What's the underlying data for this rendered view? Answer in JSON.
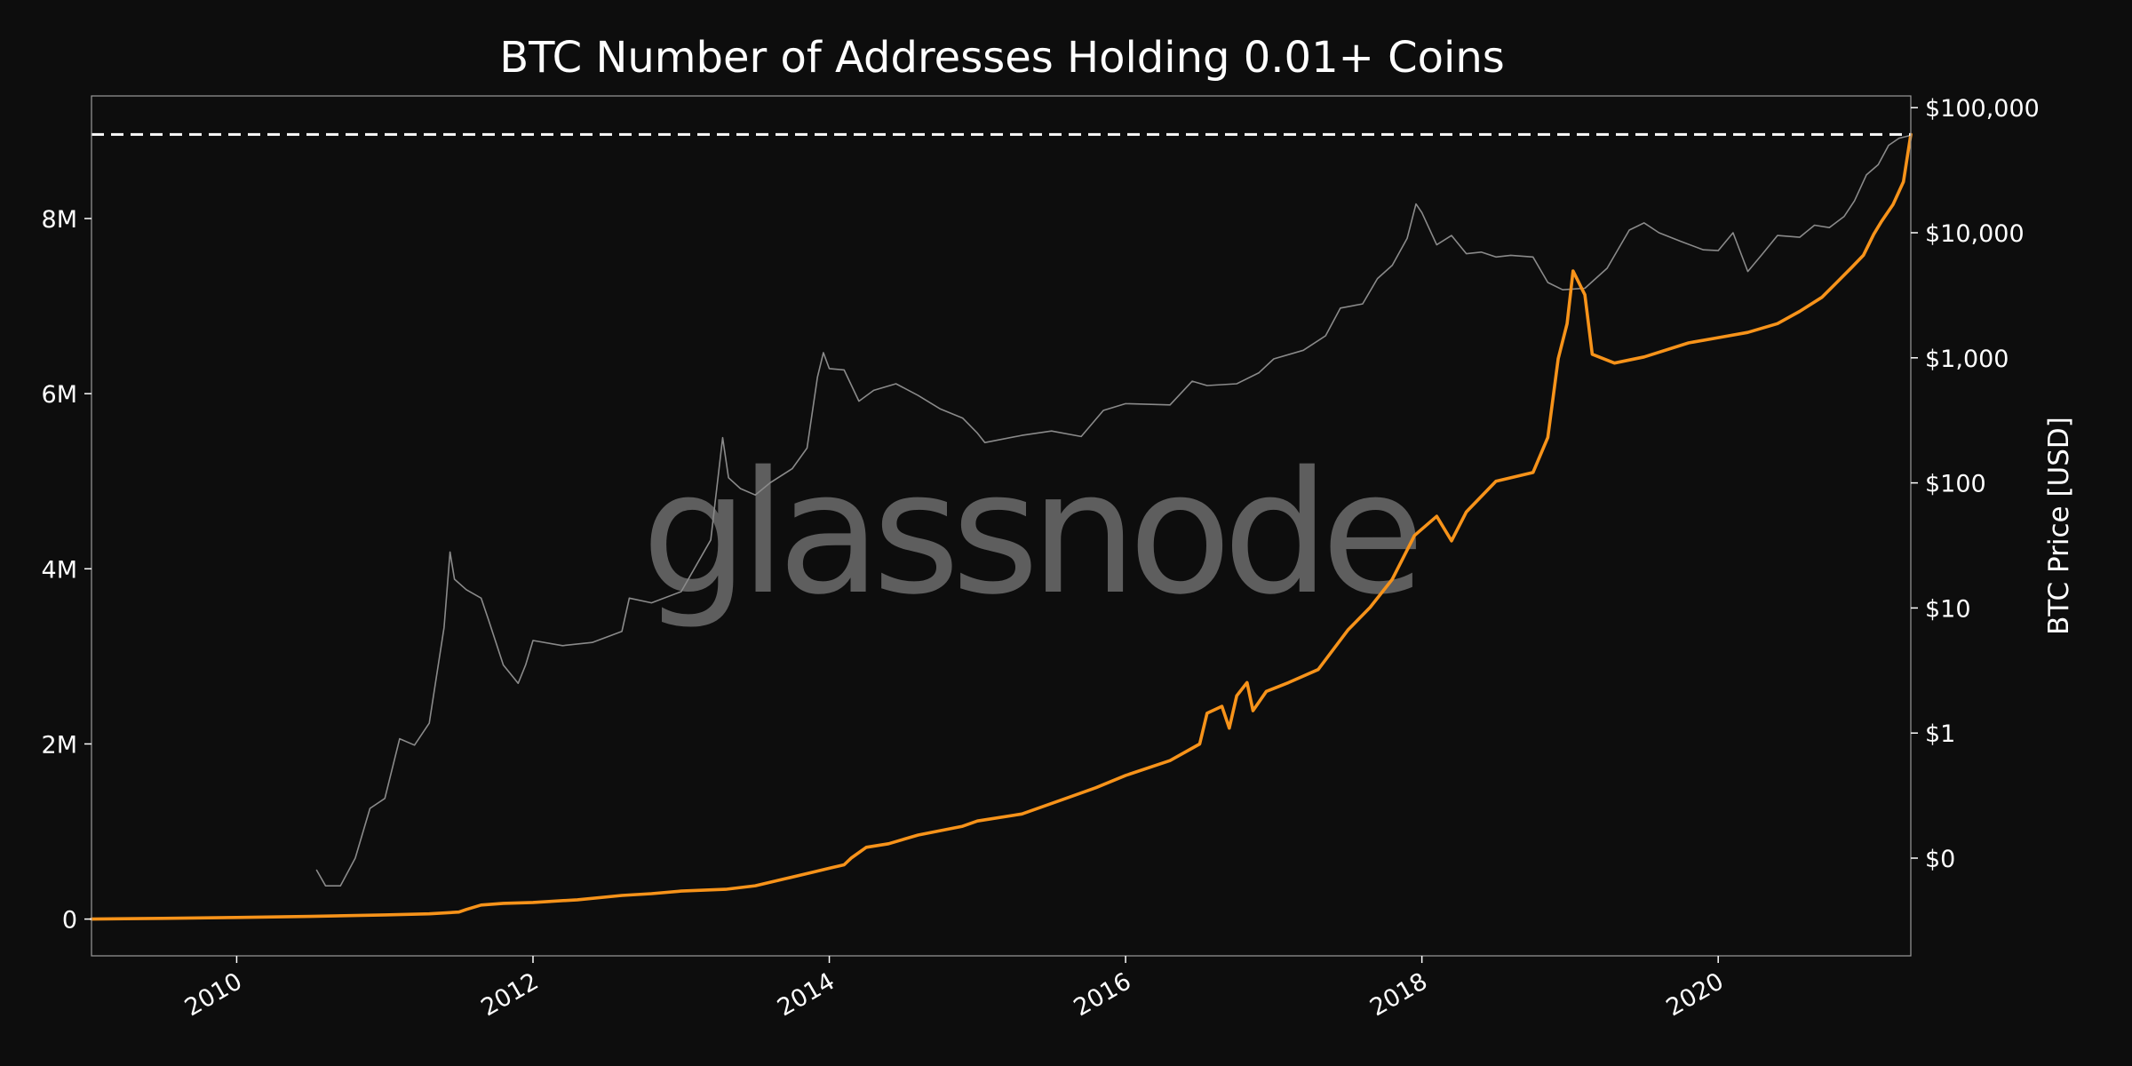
{
  "chart_data": {
    "type": "line",
    "title": "BTC Number of Addresses Holding 0.01+ Coins",
    "watermark": "glassnode",
    "xlabel": "",
    "x_ticks": [
      "2010",
      "2012",
      "2014",
      "2016",
      "2018",
      "2020"
    ],
    "x_range": [
      2009.02,
      2021.3
    ],
    "y_left": {
      "label": "",
      "range": [
        -420000,
        9400000
      ],
      "ticks": [
        0,
        2000000,
        4000000,
        6000000,
        8000000
      ],
      "tick_labels": [
        "0",
        "2M",
        "4M",
        "6M",
        "8M"
      ]
    },
    "y_right": {
      "label": "BTC Price [USD]",
      "scale": "log",
      "ticks": [
        0.1,
        1,
        10,
        100,
        1000,
        10000,
        100000
      ],
      "tick_labels": [
        "$0",
        "$1",
        "$10",
        "$100",
        "$1,000",
        "$10,000",
        "$100,000"
      ]
    },
    "reference_line": {
      "axis": "left",
      "value": 8960000,
      "style": "dashed",
      "color": "#ffffff"
    },
    "grid": false,
    "series": [
      {
        "axis": "left",
        "color": "#f7931a",
        "points": [
          [
            2009.02,
            0
          ],
          [
            2009.5,
            8000
          ],
          [
            2010.0,
            18000
          ],
          [
            2010.5,
            30000
          ],
          [
            2011.0,
            48000
          ],
          [
            2011.3,
            60000
          ],
          [
            2011.5,
            80000
          ],
          [
            2011.55,
            110000
          ],
          [
            2011.65,
            160000
          ],
          [
            2011.8,
            180000
          ],
          [
            2012.0,
            190000
          ],
          [
            2012.3,
            220000
          ],
          [
            2012.6,
            270000
          ],
          [
            2012.8,
            290000
          ],
          [
            2013.0,
            320000
          ],
          [
            2013.3,
            340000
          ],
          [
            2013.5,
            380000
          ],
          [
            2013.7,
            460000
          ],
          [
            2013.9,
            540000
          ],
          [
            2014.0,
            580000
          ],
          [
            2014.1,
            620000
          ],
          [
            2014.15,
            700000
          ],
          [
            2014.25,
            820000
          ],
          [
            2014.4,
            860000
          ],
          [
            2014.6,
            960000
          ],
          [
            2014.9,
            1060000
          ],
          [
            2015.0,
            1120000
          ],
          [
            2015.3,
            1200000
          ],
          [
            2015.6,
            1380000
          ],
          [
            2015.8,
            1500000
          ],
          [
            2016.0,
            1640000
          ],
          [
            2016.3,
            1810000
          ],
          [
            2016.5,
            2000000
          ],
          [
            2016.55,
            2350000
          ],
          [
            2016.65,
            2430000
          ],
          [
            2016.7,
            2180000
          ],
          [
            2016.75,
            2550000
          ],
          [
            2016.82,
            2700000
          ],
          [
            2016.86,
            2380000
          ],
          [
            2016.95,
            2600000
          ],
          [
            2017.1,
            2700000
          ],
          [
            2017.3,
            2850000
          ],
          [
            2017.5,
            3300000
          ],
          [
            2017.65,
            3560000
          ],
          [
            2017.8,
            3880000
          ],
          [
            2017.95,
            4380000
          ],
          [
            2018.1,
            4600000
          ],
          [
            2018.2,
            4320000
          ],
          [
            2018.3,
            4650000
          ],
          [
            2018.5,
            5000000
          ],
          [
            2018.75,
            5100000
          ],
          [
            2018.85,
            5500000
          ],
          [
            2018.92,
            6400000
          ],
          [
            2018.98,
            6800000
          ],
          [
            2019.02,
            7400000
          ],
          [
            2019.1,
            7130000
          ],
          [
            2019.15,
            6450000
          ],
          [
            2019.3,
            6350000
          ],
          [
            2019.5,
            6420000
          ],
          [
            2019.8,
            6580000
          ],
          [
            2020.0,
            6640000
          ],
          [
            2020.2,
            6700000
          ],
          [
            2020.4,
            6800000
          ],
          [
            2020.55,
            6940000
          ],
          [
            2020.7,
            7100000
          ],
          [
            2020.8,
            7270000
          ],
          [
            2020.9,
            7440000
          ],
          [
            2020.98,
            7580000
          ],
          [
            2021.05,
            7820000
          ],
          [
            2021.1,
            7960000
          ],
          [
            2021.18,
            8160000
          ],
          [
            2021.25,
            8420000
          ],
          [
            2021.3,
            8960000
          ]
        ]
      },
      {
        "axis": "right",
        "color": "#8a8a8a",
        "points": [
          [
            2010.54,
            0.08
          ],
          [
            2010.6,
            0.06
          ],
          [
            2010.7,
            0.06
          ],
          [
            2010.8,
            0.1
          ],
          [
            2010.9,
            0.25
          ],
          [
            2011.0,
            0.3
          ],
          [
            2011.1,
            0.9
          ],
          [
            2011.2,
            0.8
          ],
          [
            2011.3,
            1.2
          ],
          [
            2011.4,
            7.0
          ],
          [
            2011.44,
            28
          ],
          [
            2011.47,
            17
          ],
          [
            2011.55,
            14
          ],
          [
            2011.65,
            12
          ],
          [
            2011.7,
            8
          ],
          [
            2011.8,
            3.5
          ],
          [
            2011.9,
            2.5
          ],
          [
            2011.95,
            3.5
          ],
          [
            2012.0,
            5.5
          ],
          [
            2012.2,
            5.0
          ],
          [
            2012.4,
            5.3
          ],
          [
            2012.6,
            6.5
          ],
          [
            2012.65,
            12
          ],
          [
            2012.8,
            11
          ],
          [
            2013.0,
            13.5
          ],
          [
            2013.2,
            35
          ],
          [
            2013.28,
            230
          ],
          [
            2013.32,
            110
          ],
          [
            2013.4,
            90
          ],
          [
            2013.5,
            80
          ],
          [
            2013.6,
            100
          ],
          [
            2013.75,
            130
          ],
          [
            2013.85,
            190
          ],
          [
            2013.92,
            700
          ],
          [
            2013.96,
            1100
          ],
          [
            2014.0,
            820
          ],
          [
            2014.1,
            800
          ],
          [
            2014.2,
            450
          ],
          [
            2014.3,
            550
          ],
          [
            2014.45,
            620
          ],
          [
            2014.6,
            500
          ],
          [
            2014.75,
            390
          ],
          [
            2014.9,
            330
          ],
          [
            2015.0,
            250
          ],
          [
            2015.05,
            210
          ],
          [
            2015.3,
            240
          ],
          [
            2015.5,
            260
          ],
          [
            2015.7,
            235
          ],
          [
            2015.85,
            380
          ],
          [
            2016.0,
            430
          ],
          [
            2016.3,
            420
          ],
          [
            2016.45,
            650
          ],
          [
            2016.55,
            600
          ],
          [
            2016.75,
            620
          ],
          [
            2016.9,
            760
          ],
          [
            2017.0,
            980
          ],
          [
            2017.2,
            1150
          ],
          [
            2017.35,
            1500
          ],
          [
            2017.45,
            2500
          ],
          [
            2017.6,
            2700
          ],
          [
            2017.7,
            4300
          ],
          [
            2017.8,
            5500
          ],
          [
            2017.9,
            9000
          ],
          [
            2017.96,
            17000
          ],
          [
            2018.0,
            14500
          ],
          [
            2018.1,
            8000
          ],
          [
            2018.2,
            9500
          ],
          [
            2018.3,
            6800
          ],
          [
            2018.4,
            7000
          ],
          [
            2018.5,
            6400
          ],
          [
            2018.6,
            6600
          ],
          [
            2018.75,
            6400
          ],
          [
            2018.85,
            4000
          ],
          [
            2018.95,
            3500
          ],
          [
            2019.1,
            3600
          ],
          [
            2019.25,
            5200
          ],
          [
            2019.4,
            10500
          ],
          [
            2019.5,
            12000
          ],
          [
            2019.6,
            10000
          ],
          [
            2019.75,
            8500
          ],
          [
            2019.9,
            7300
          ],
          [
            2020.0,
            7200
          ],
          [
            2020.1,
            10000
          ],
          [
            2020.2,
            4900
          ],
          [
            2020.3,
            6800
          ],
          [
            2020.4,
            9500
          ],
          [
            2020.55,
            9200
          ],
          [
            2020.65,
            11500
          ],
          [
            2020.75,
            11000
          ],
          [
            2020.85,
            13500
          ],
          [
            2020.92,
            18000
          ],
          [
            2021.0,
            29000
          ],
          [
            2021.08,
            35000
          ],
          [
            2021.15,
            50000
          ],
          [
            2021.22,
            57000
          ],
          [
            2021.3,
            60000
          ]
        ]
      }
    ]
  }
}
